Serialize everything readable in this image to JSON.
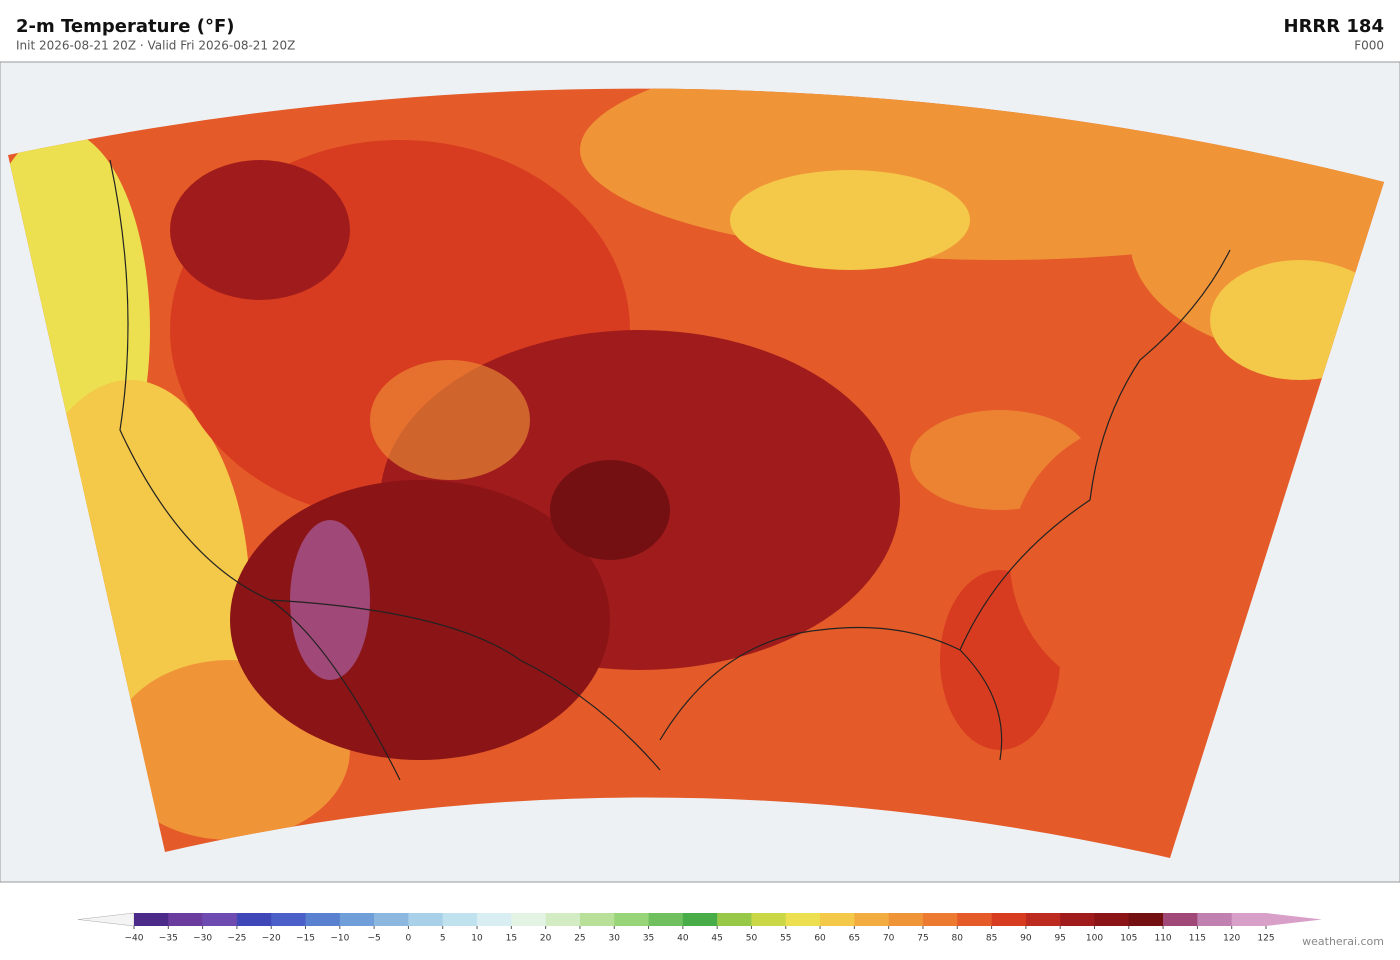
{
  "header": {
    "title": "2-m Temperature  (°F)",
    "subtitle": "Init 2026-08-21 20Z  ·  Valid Fri 2026-08-21 20Z",
    "model": "HRRR  184",
    "forecast_hour": "F000"
  },
  "colorbar": {
    "ticks": [
      {
        "value": -40,
        "label": "−40"
      },
      {
        "value": -35,
        "label": "−35"
      },
      {
        "value": -30,
        "label": "−30"
      },
      {
        "value": -25,
        "label": "−25"
      },
      {
        "value": -20,
        "label": "−20"
      },
      {
        "value": -15,
        "label": "−15"
      },
      {
        "value": -10,
        "label": "−10"
      },
      {
        "value": -5,
        "label": "−5"
      },
      0,
      5,
      10,
      15,
      20,
      25,
      30,
      35,
      40,
      45,
      50,
      55,
      60,
      65,
      70,
      75,
      80,
      85,
      90,
      95,
      100,
      105,
      110,
      115,
      120,
      125
    ],
    "colors": [
      "#4b2a8a",
      "#6a3c9e",
      "#6e4bb0",
      "#3f47b8",
      "#4a60c8",
      "#5a80d0",
      "#6f9ed8",
      "#8cb8e0",
      "#a8d0e8",
      "#c0e2ee",
      "#d8eef2",
      "#e4f4e4",
      "#d4ecc4",
      "#b8e098",
      "#98d478",
      "#70c060",
      "#48ac48",
      "#98c848",
      "#cad848",
      "#ece050",
      "#f4c848",
      "#f2ac40",
      "#f09438",
      "#ec7a30",
      "#e45a28",
      "#d83c20",
      "#bc2a20",
      "#a01c1c",
      "#8a1416",
      "#741012",
      "#a04878",
      "#c080b0",
      "#d8a0c8"
    ],
    "under_color": "#f4f4f4",
    "over_color": "#d8a0c8"
  },
  "credit": "weatherai.com"
}
